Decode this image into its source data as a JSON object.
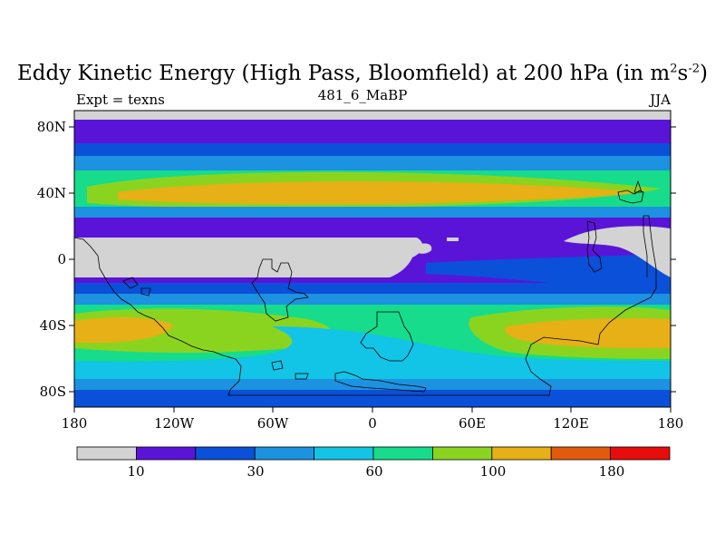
{
  "title": {
    "main": "Eddy Kinetic Energy (High Pass, Bloomfield) at 200 hPa (in m",
    "sup1": "2",
    "mid": "s",
    "sup2": "-2",
    "close": ")"
  },
  "subtitle": "481_6_MaBP",
  "left_label": "Expt = texns",
  "right_label": "JJA",
  "lat_ticks": [
    "80N",
    "40N",
    "0",
    "40S",
    "80S"
  ],
  "lon_ticks": [
    "180",
    "120W",
    "60W",
    "0",
    "60E",
    "120E",
    "180"
  ],
  "colorbar": {
    "colors": [
      "#d3d3d3",
      "#5a14d8",
      "#0a50d8",
      "#1c92e0",
      "#12c4e6",
      "#16dc8c",
      "#8ad420",
      "#e6b016",
      "#e25a0e",
      "#e80c0c"
    ],
    "labels": [
      "10",
      "30",
      "60",
      "100",
      "180"
    ]
  },
  "colors": {
    "missing": "#d3d3d3",
    "lev1": "#5a14d8",
    "lev2": "#0a50d8",
    "lev3": "#1c92e0",
    "lev4": "#12c4e6",
    "lev5": "#16dc8c",
    "lev6": "#8ad420",
    "lev7": "#e6b016"
  }
}
